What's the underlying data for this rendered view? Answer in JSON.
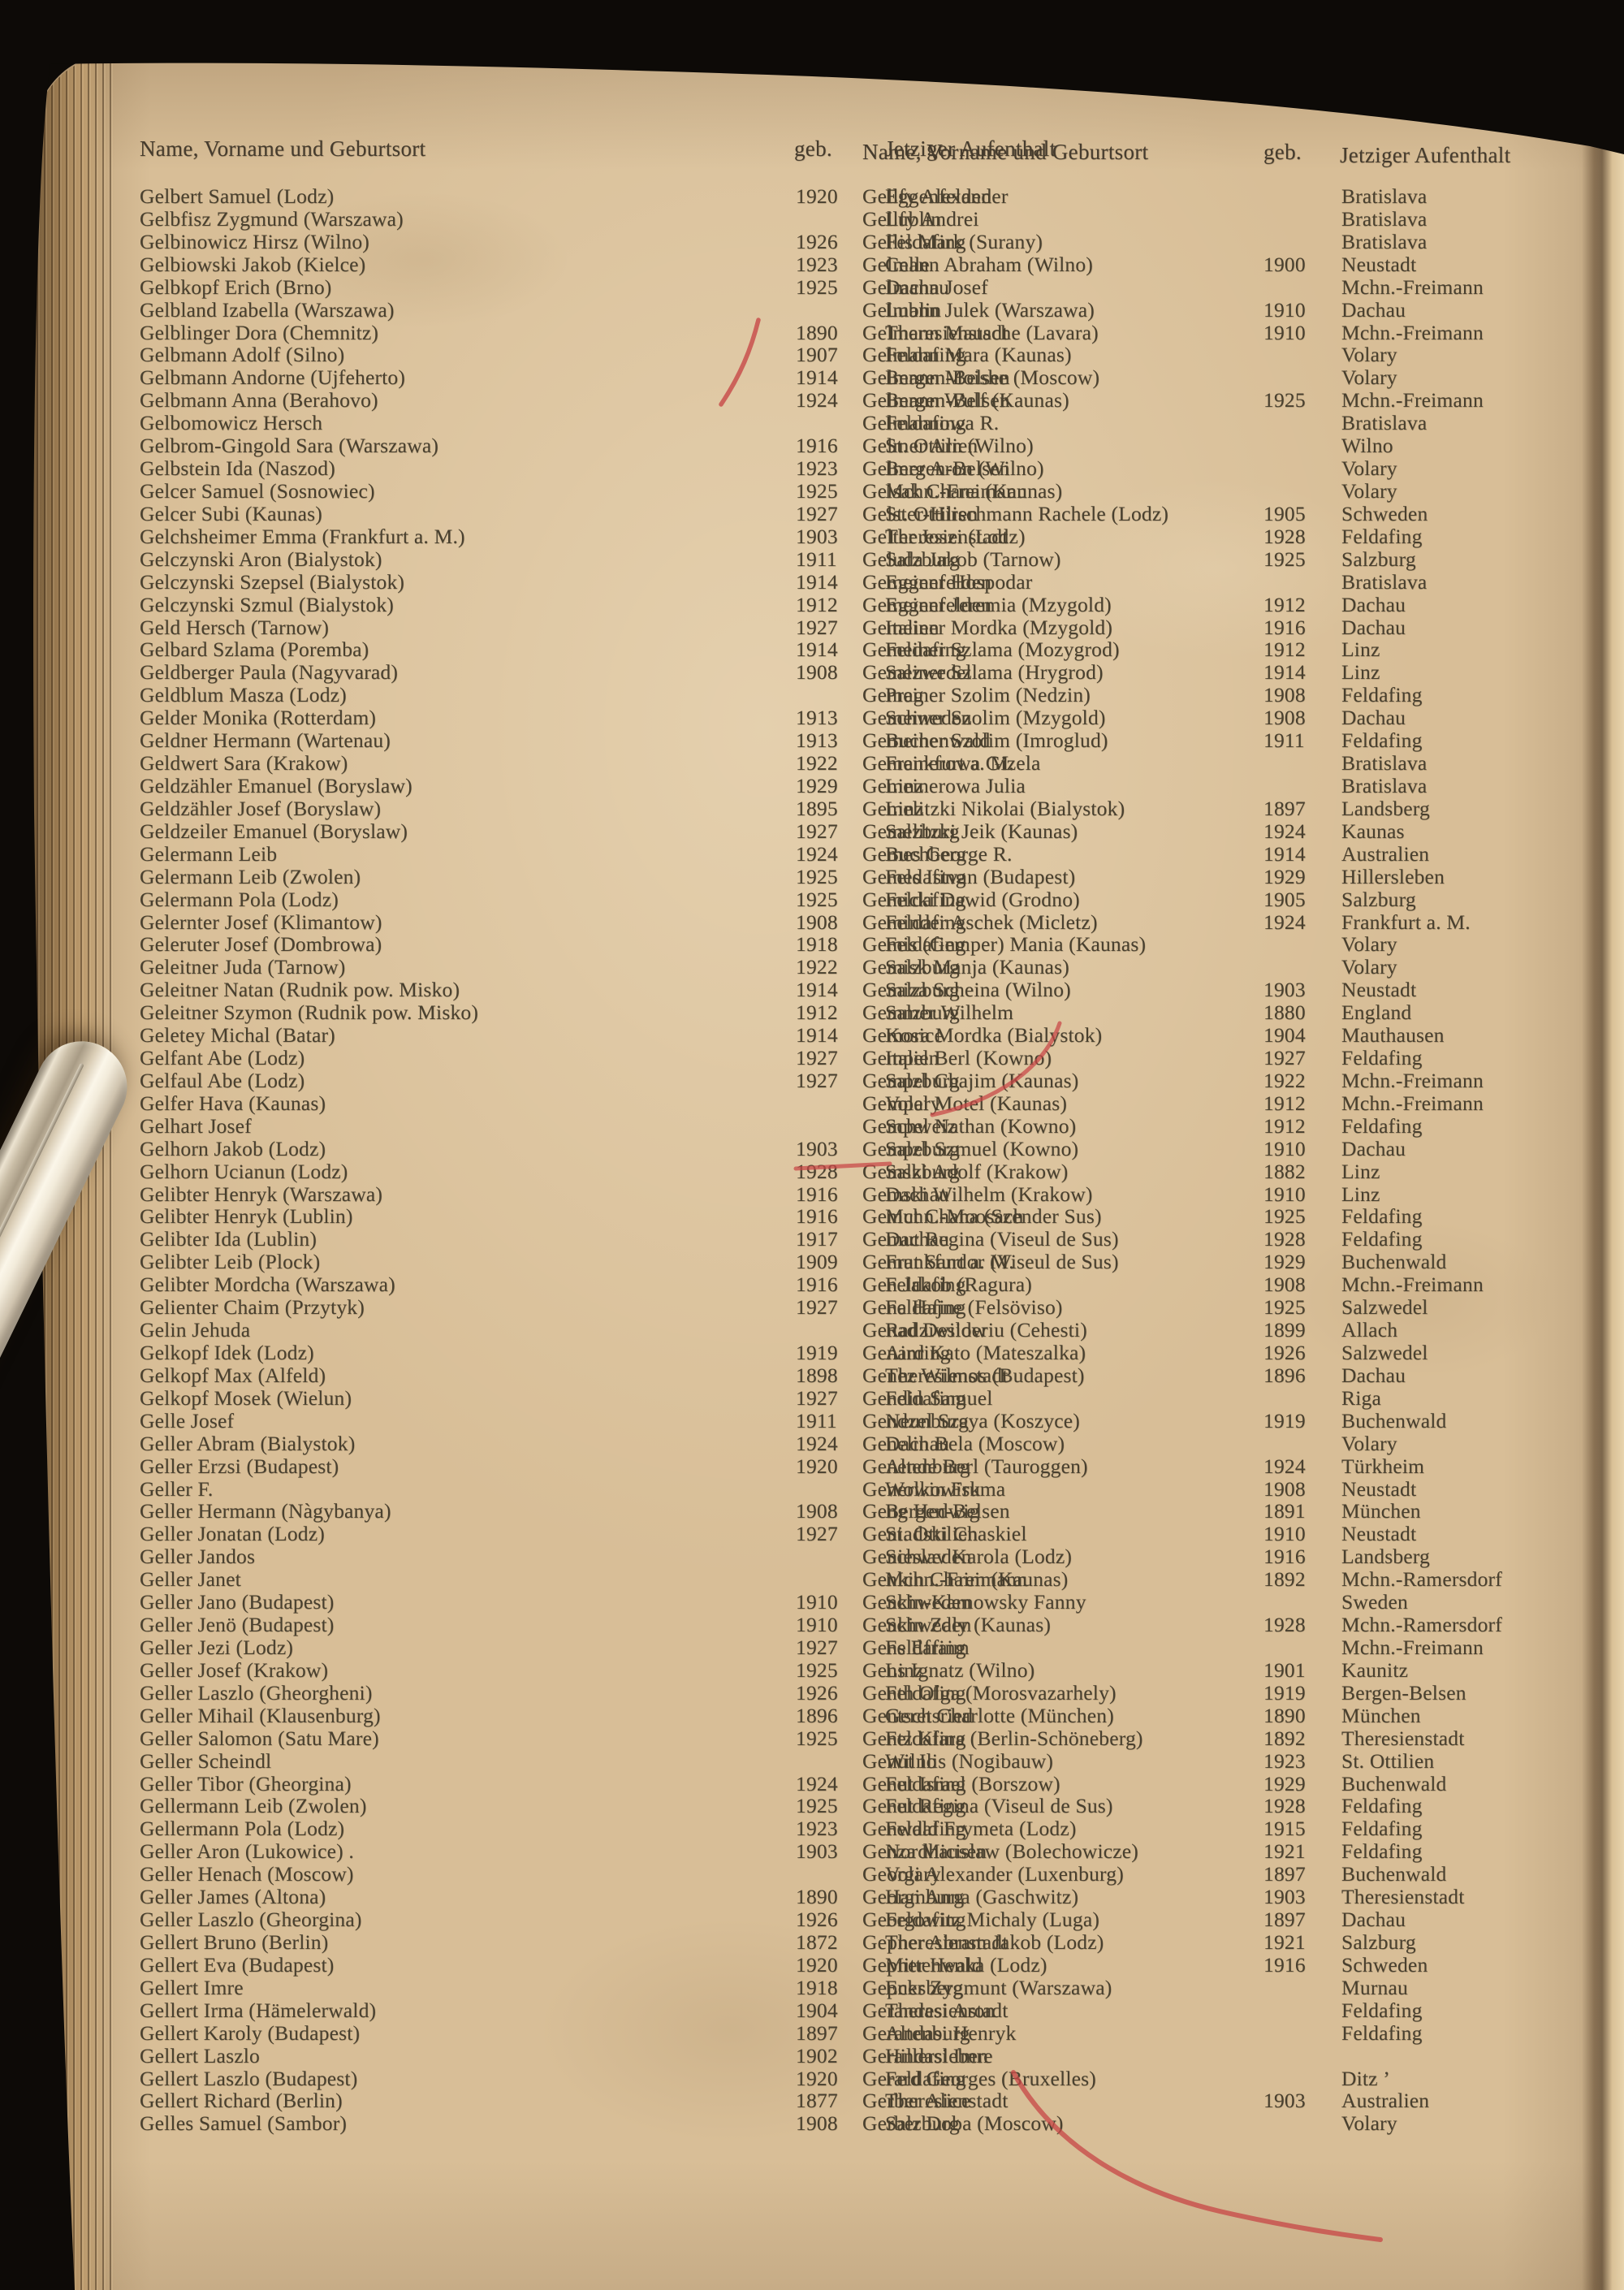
{
  "document": {
    "type": "scanned-register-book-page",
    "paper_color": "#d8be97",
    "text_color": "#49402f",
    "red_ink_color": "#c74545",
    "header": {
      "name_col": "Name, Vorname und Geburtsort",
      "geb_col": "geb.",
      "aufenthalt_col": "Jetziger Aufenthalt"
    },
    "annotations": {
      "marks": [
        "red-diagonal-stroke-through-years-1890-1907",
        "red-strike-through-year-1928",
        "red-curve-right-of-salzburg-entries",
        "red-large-curve-bottom-right-through-gerber-entries"
      ],
      "objects": [
        "metal-clip-over-left-edge",
        "book-page-edges-left",
        "scanner-black-background"
      ]
    },
    "columns": [
      {
        "entries": [
          [
            "Gelbert Samuel (Lodz)",
            "1920",
            "Eggenfelden"
          ],
          [
            "Gelbfisz Zygmund (Warszawa)",
            "",
            "Lublin"
          ],
          [
            "Gelbinowicz Hirsz (Wilno)",
            "1926",
            "Feldafing"
          ],
          [
            "Gelbiowski Jakob (Kielce)",
            "1923",
            "Celle"
          ],
          [
            "Gelbkopf Erich (Brno)",
            "1925",
            "Dachau"
          ],
          [
            "Gelbland Izabella (Warszawa)",
            "",
            "Lublin"
          ],
          [
            "Gelblinger Dora (Chemnitz)",
            "1890",
            "Theresienstadt"
          ],
          [
            "Gelbmann Adolf (Silno)",
            "1907",
            "Feldafing"
          ],
          [
            "Gelbmann Andorne (Ujfeherto)",
            "1914",
            "Bergen-Belsen"
          ],
          [
            "Gelbmann Anna (Berahovo)",
            "1924",
            "Bergen-Belsen"
          ],
          [
            "Gelbomowicz Hersch",
            "",
            "Feldafing"
          ],
          [
            "Gelbrom-Gingold Sara (Warszawa)",
            "1916",
            "St. Ottilien"
          ],
          [
            "Gelbstein Ida (Naszod)",
            "1923",
            "Bergen-Belsen"
          ],
          [
            "Gelcer Samuel (Sosnowiec)",
            "1925",
            "Mchn.-Freimann"
          ],
          [
            "Gelcer Subi (Kaunas)",
            "1927",
            "St. Ottilien"
          ],
          [
            "Gelchsheimer Emma (Frankfurt a. M.)",
            "1903",
            "Theresienstadt"
          ],
          [
            "Gelczynski Aron (Bialystok)",
            "1911",
            "Salzburg"
          ],
          [
            "Gelczynski Szepsel (Bialystok)",
            "1914",
            "Eggenfelden"
          ],
          [
            "Gelczynski Szmul (Bialystok)",
            "1912",
            "Eggenfelden"
          ],
          [
            "Geld Hersch (Tarnow)",
            "1927",
            "Italien"
          ],
          [
            "Gelbard Szlama (Poremba)",
            "1914",
            "Feldafing"
          ],
          [
            "Geldberger Paula (Nagyvarad)",
            "1908",
            "Salzwedel"
          ],
          [
            "Geldblum Masza (Lodz)",
            "",
            "Prag"
          ],
          [
            "Gelder Monika (Rotterdam)",
            "1913",
            "Schweden"
          ],
          [
            "Geldner Hermann (Wartenau)",
            "1913",
            "Buchenwald"
          ],
          [
            "Geldwert Sara (Krakow)",
            "1922",
            "Frankfurt a. M."
          ],
          [
            "Geldzähler Emanuel (Boryslaw)",
            "1929",
            "Linz"
          ],
          [
            "Geldzähler Josef (Boryslaw)",
            "1895",
            "Linz"
          ],
          [
            "Geldzeiler Emanuel (Boryslaw)",
            "1927",
            "Salzburg"
          ],
          [
            "Gelermann Leib",
            "1924",
            "Buchberg"
          ],
          [
            "Gelermann Leib (Zwolen)",
            "1925",
            "Feldafing"
          ],
          [
            "Gelermann Pola (Lodz)",
            "1925",
            "Feldafing"
          ],
          [
            "Gelernter Josef (Klimantow)",
            "1908",
            "Feldafing"
          ],
          [
            "Geleruter Josef (Dombrowa)",
            "1918",
            "Feldafing"
          ],
          [
            "Geleitner Juda (Tarnow)",
            "1922",
            "Salzburg"
          ],
          [
            "Geleitner Natan (Rudnik pow. Misko)",
            "1914",
            "Salzburg"
          ],
          [
            "Geleitner Szymon (Rudnik pow. Misko)",
            "1912",
            "Salzburg"
          ],
          [
            "Geletey Michal (Batar)",
            "1914",
            "Kosice"
          ],
          [
            "Gelfant Abe (Lodz)",
            "1927",
            "Italien"
          ],
          [
            "Gelfaul Abe (Lodz)",
            "1927",
            "Salzburg"
          ],
          [
            "Gelfer Hava (Kaunas)",
            "",
            "Volary"
          ],
          [
            "Gelhart Josef",
            "",
            "Schweiz"
          ],
          [
            "Gelhorn Jakob (Lodz)",
            "1903",
            "Salzburg"
          ],
          [
            "Gelhorn Ucianun (Lodz)",
            "1928",
            "Salzburg"
          ],
          [
            "Gelibter Henryk (Warszawa)",
            "1916",
            "Dachau"
          ],
          [
            "Gelibter Henryk (Lublin)",
            "1916",
            "Mchn.-Moosach"
          ],
          [
            "Gelibter Ida (Lublin)",
            "1917",
            "Dachau"
          ],
          [
            "Gelibter Leib (Plock)",
            "1909",
            "Frankfurt a. M."
          ],
          [
            "Gelibter Mordcha (Warszawa)",
            "1916",
            "Feldafing"
          ],
          [
            "Gelienter Chaim (Przytyk)",
            "1927",
            "Feldafing"
          ],
          [
            "Gelin Jehuda",
            "",
            "Radziwilow"
          ],
          [
            "Gelkopf Idek (Lodz)",
            "1919",
            "Ainring"
          ],
          [
            "Gelkopf Max (Alfeld)",
            "1898",
            "Theresienstadt"
          ],
          [
            "Gelkopf Mosek (Wielun)",
            "1927",
            "Feldafing"
          ],
          [
            "Gelle Josef",
            "1911",
            "Neunburg"
          ],
          [
            "Geller Abram (Bialystok)",
            "1924",
            "Dachau"
          ],
          [
            "Geller Erzsi (Budapest)",
            "1920",
            "Altenburg"
          ],
          [
            "Geller F.",
            "",
            "Wolkowisk"
          ],
          [
            "Geller Hermann (Nàgybanya)",
            "1908",
            "Bergen-Belsen"
          ],
          [
            "Geller Jonatan (Lodz)",
            "1927",
            "St. Ottilien"
          ],
          [
            "Geller Jandos",
            "",
            "Schweden"
          ],
          [
            "Geller Janet",
            "",
            "Mchn.-Freimann"
          ],
          [
            "Geller Jano (Budapest)",
            "1910",
            "Schweden"
          ],
          [
            "Geller Jenö (Budapest)",
            "1910",
            "Schweden"
          ],
          [
            "Geller Jezi (Lodz)",
            "1927",
            "Feldafing"
          ],
          [
            "Geller Josef (Krakow)",
            "1925",
            "Linz"
          ],
          [
            "Geller Laszlo (Gheorgheni)",
            "1926",
            "Feldafing"
          ],
          [
            "Geller Mihail (Klausenburg)",
            "1896",
            "Geretsried"
          ],
          [
            "Geller Salomon (Satu Mare)",
            "1925",
            "Feldafing"
          ],
          [
            "Geller Scheindl",
            "",
            "Wilno"
          ],
          [
            "Geller Tibor (Gheorgina)",
            "1924",
            "Feldafing"
          ],
          [
            "Gellermann Leib (Zwolen)",
            "1925",
            "Feldafing"
          ],
          [
            "Gellermann Pola (Lodz)",
            "1923",
            "Feldafing"
          ],
          [
            "Geller Aron (Lukowice) .",
            "1903",
            "Nordhausen"
          ],
          [
            "Geller Henach (Moscow)",
            "",
            "Volary"
          ],
          [
            "Geller James (Altona)",
            "1890",
            "Hamburg"
          ],
          [
            "Geller Laszlo (Gheorgina)",
            "1926",
            "Feldafing"
          ],
          [
            "Gellert Bruno (Berlin)",
            "1872",
            "Theresienstadt"
          ],
          [
            "Gellert Eva (Budapest)",
            "1920",
            "Mittenwald"
          ],
          [
            "Gellert Imre",
            "1918",
            "Ecksberg"
          ],
          [
            "Gellert Irma (Hämelerwald)",
            "1904",
            "Theresienstadt"
          ],
          [
            "Gellert Karoly (Budapest)",
            "1897",
            "Altenburg"
          ],
          [
            "Gellert Laszlo",
            "1902",
            "Hillersleben"
          ],
          [
            "Gellert Laszlo (Budapest)",
            "1920",
            "Feldafing"
          ],
          [
            "Gellert Richard (Berlin)",
            "1877",
            "Theresienstadt"
          ],
          [
            "Gelles Samuel (Sambor)",
            "1908",
            "Salzburg"
          ]
        ]
      },
      {
        "entries": [
          [
            "Gellfy Alexander",
            "",
            "Bratislava"
          ],
          [
            "Gellfy Andrei",
            "",
            "Bratislava"
          ],
          [
            "Gellis Mark (Surany)",
            "",
            "Bratislava"
          ],
          [
            "Gelmann Abraham (Wilno)",
            "1900",
            "Neustadt"
          ],
          [
            "Gelmann Josef",
            "",
            "Mchn.-Freimann"
          ],
          [
            "Gelmann Julek (Warszawa)",
            "1910",
            "Dachau"
          ],
          [
            "Gelmann Mausche (Lavara)",
            "1910",
            "Mchn.-Freimann"
          ],
          [
            "Gelmann Mara (Kaunas)",
            "",
            "Volary"
          ],
          [
            "Gelmann Moishe (Moscow)",
            "",
            "Volary"
          ],
          [
            "Gelmann Wulf (Kaunas)",
            "1925",
            "Mchn.-Freimann"
          ],
          [
            "Gelmannowa R.",
            "",
            "Bratislava"
          ],
          [
            "Gelmer Arn (Wilno)",
            "",
            "Wilno"
          ],
          [
            "Gelmer Aron (Wilno)",
            "",
            "Volary"
          ],
          [
            "Gelsak Chana (Kaunas)",
            "",
            "Volary"
          ],
          [
            "Gelster-Hirschmann Rachele (Lodz)",
            "1905",
            "Schweden"
          ],
          [
            "Gelter Joszi (Lodz)",
            "1928",
            "Feldafing"
          ],
          [
            "Geluda Jakob (Tarnow)",
            "1925",
            "Salzburg"
          ],
          [
            "Gemeiner Hospodar",
            "",
            "Bratislava"
          ],
          [
            "Gemeiner Jeremia (Mzygold)",
            "1912",
            "Dachau"
          ],
          [
            "Gemeiner Mordka (Mzygold)",
            "1916",
            "Dachau"
          ],
          [
            "Gemeiner Szlama (Mozygrod)",
            "1912",
            "Linz"
          ],
          [
            "Gemeiner Szlama (Hrygrod)",
            "1914",
            "Linz"
          ],
          [
            "Gemeiner Szolim (Nedzin)",
            "1908",
            "Feldafing"
          ],
          [
            "Gemeiner Szolim (Mzygold)",
            "1908",
            "Dachau"
          ],
          [
            "Gemeiner Szolim (Imroglud)",
            "1911",
            "Feldafing"
          ],
          [
            "Gemeinerowa Gizela",
            "",
            "Bratislava"
          ],
          [
            "Gemeinerowa Julia",
            "",
            "Bratislava"
          ],
          [
            "Gemelitzki Nikolai (Bialystok)",
            "1897",
            "Landsberg"
          ],
          [
            "Gemelitzki Jeik (Kaunas)",
            "1924",
            "Kaunas"
          ],
          [
            "Gemes George R.",
            "1914",
            "Australien"
          ],
          [
            "Gemes Istvan (Budapest)",
            "1929",
            "Hillersleben"
          ],
          [
            "Gemicki Dawid (Grodno)",
            "1905",
            "Salzburg"
          ],
          [
            "Geminder Aschek (Micletz)",
            "1924",
            "Frankfurt a. M."
          ],
          [
            "Gemis (Gemper) Mania (Kaunas)",
            "",
            "Volary"
          ],
          [
            "Gemisk Manja (Kaunas)",
            "",
            "Volary"
          ],
          [
            "Gemiza Scheina (Wilno)",
            "1903",
            "Neustadt"
          ],
          [
            "Gemmer Wilhelm",
            "1880",
            "England"
          ],
          [
            "Gemora Mordka (Bialystok)",
            "1904",
            "Mauthausen"
          ],
          [
            "Gempel Berl (Kowno)",
            "1927",
            "Feldafing"
          ],
          [
            "Gempel Chajim (Kaunas)",
            "1922",
            "Mchn.-Freimann"
          ],
          [
            "Gempel Motel (Kaunas)",
            "1912",
            "Mchn.-Freimann"
          ],
          [
            "Gempel Nathan (Kowno)",
            "1912",
            "Feldafing"
          ],
          [
            "Gempel Szmuel (Kowno)",
            "1910",
            "Dachau"
          ],
          [
            "Gemski Adolf (Krakow)",
            "1882",
            "Linz"
          ],
          [
            "Gemski Wilhelm (Krakow)",
            "1910",
            "Linz"
          ],
          [
            "Gemut Chana (Szender Sus)",
            "1925",
            "Feldafing"
          ],
          [
            "Gemut Regina (Viseul de Sus)",
            "1928",
            "Feldafing"
          ],
          [
            "Gemut Sandor (Viseul de Sus)",
            "1929",
            "Buchenwald"
          ],
          [
            "Gen Jakob (Ragura)",
            "1908",
            "Mchn.-Freimann"
          ],
          [
            "Gena Hajne (Felsöviso)",
            "1925",
            "Salzwedel"
          ],
          [
            "Genad Desideriu (Cehesti)",
            "1899",
            "Allach"
          ],
          [
            "Genard Kato (Mateszalka)",
            "1926",
            "Salzwedel"
          ],
          [
            "Genez Wilmos (Budapest)",
            "1896",
            "Dachau"
          ],
          [
            "Gendin Samuel",
            "",
            "Riga"
          ],
          [
            "Gendzel Szaya (Koszyce)",
            "1919",
            "Buchenwald"
          ],
          [
            "Genelin Bela (Moscow)",
            "",
            "Volary"
          ],
          [
            "Genende Berl (Tauroggen)",
            "1924",
            "Türkheim"
          ],
          [
            "Generwin Fruma",
            "1908",
            "Neustadt"
          ],
          [
            "Geng Hedwig",
            "1891",
            "München"
          ],
          [
            "Geniadski Chaskiel",
            "1910",
            "Neustadt"
          ],
          [
            "Genieslav Karola (Lodz)",
            "1916",
            "Landsberg"
          ],
          [
            "Genkin Chaim (Kaunas)",
            "1892",
            "Mchn.-Ramersdorf"
          ],
          [
            "Genkin-Karnowsky Fanny",
            "",
            "Sweden"
          ],
          [
            "Genkin Zaly (Kaunas)",
            "1928",
            "Mchn.-Ramersdorf"
          ],
          [
            "Gens Efraim",
            "",
            "Mchn.-Freimann"
          ],
          [
            "Gens Ignatz (Wilno)",
            "1901",
            "Kaunitz"
          ],
          [
            "Genth Olga (Morosvazarhely)",
            "1919",
            "Bergen-Belsen"
          ],
          [
            "Gentsch Charlotte (München)",
            "1890",
            "München"
          ],
          [
            "Gentz Klara (Berlin-Schöneberg)",
            "1892",
            "Theresienstadt"
          ],
          [
            "Genut Ilis (Nogibauw)",
            "1923",
            "St. Ottilien"
          ],
          [
            "Genut Israel (Borszow)",
            "1929",
            "Buchenwald"
          ],
          [
            "Genut Regina (Viseul de Sus)",
            "1928",
            "Feldafing"
          ],
          [
            "Genwald Frymeta (Lodz)",
            "1915",
            "Feldafing"
          ],
          [
            "Genza Micislaw (Bolechowicze)",
            "1921",
            "Feldafing"
          ],
          [
            "Georgi Alexander (Luxenburg)",
            "1897",
            "Buchenwald"
          ],
          [
            "Georgi Anna (Gaschwitz)",
            "1903",
            "Theresienstadt"
          ],
          [
            "Georgowitz Michaly (Luga)",
            "1897",
            "Dachau"
          ],
          [
            "Gepner Abram Jakob (Lodz)",
            "1921",
            "Salzburg"
          ],
          [
            "Gepner Henka (Lodz)",
            "1916",
            "Schweden"
          ],
          [
            "Gepner Zygmunt (Warszawa)",
            "",
            "Murnau"
          ],
          [
            "Gerandasi Aron",
            "",
            "Feldafing"
          ],
          [
            "Gerandasi Henryk",
            "",
            "Feldafing"
          ],
          [
            "Gerandasi Imre",
            "",
            ""
          ],
          [
            "Gerard Georges (Bruxelles)",
            "",
            "Ditz ’"
          ],
          [
            "Gerber Alice",
            "1903",
            "Australien"
          ],
          [
            "Gerber Doba (Moscow)",
            "",
            "Volary"
          ]
        ]
      }
    ]
  }
}
